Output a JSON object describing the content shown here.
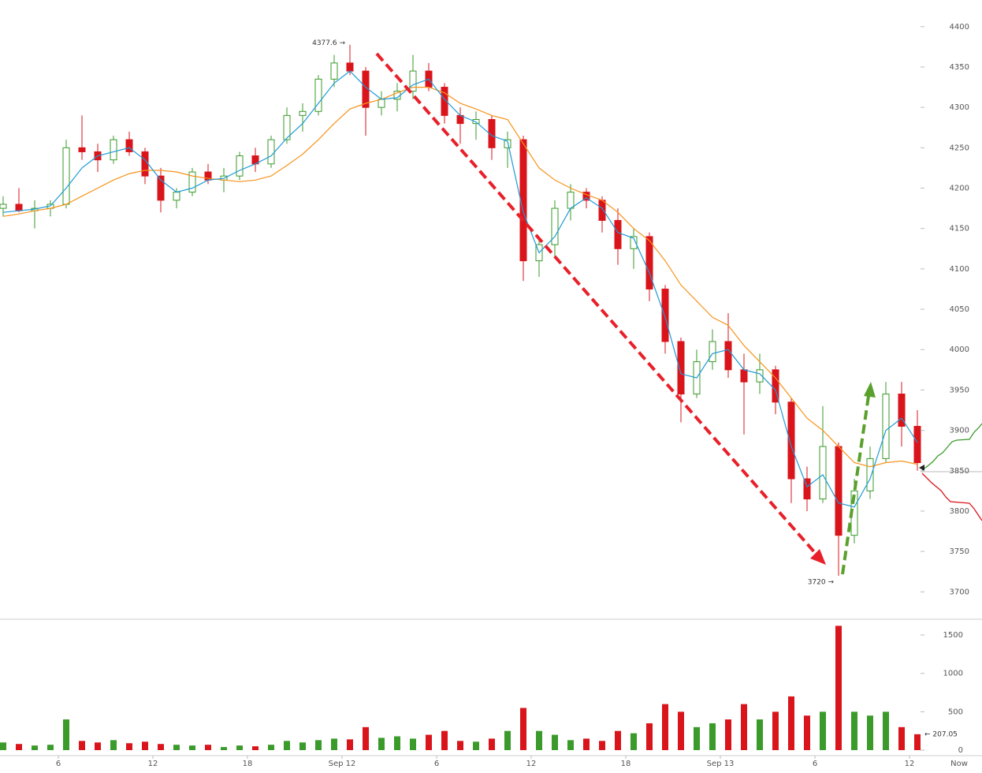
{
  "chart_data": {
    "type": "candlestick",
    "x": [
      2.5,
      3.5,
      4.5,
      5.5,
      6.5,
      7.5,
      8.5,
      9.5,
      10.5,
      11.5,
      12.5,
      13.5,
      14.5,
      15.5,
      16.5,
      17.5,
      18.5,
      19.5,
      20.5,
      21.5,
      22.5,
      23.5,
      24.5,
      25.5,
      26.5,
      27.5,
      28.5,
      29.5,
      30.5,
      31.5,
      32.5,
      33.5,
      34.5,
      35.5,
      36.5,
      37.5,
      38.5,
      39.5,
      40.5,
      41.5,
      42.5,
      43.5,
      44.5,
      45.5,
      46.5,
      47.5,
      48.5,
      49.5,
      50.5,
      51.5,
      52.5,
      53.5,
      54.5,
      55.5,
      56.5,
      57.5,
      58.5,
      59.5,
      60.5
    ],
    "open": [
      4175,
      4180,
      4172,
      4175,
      4180,
      4250,
      4245,
      4235,
      4260,
      4245,
      4215,
      4185,
      4195,
      4220,
      4210,
      4215,
      4240,
      4230,
      4260,
      4290,
      4295,
      4335,
      4355,
      4345,
      4300,
      4310,
      4320,
      4345,
      4325,
      4290,
      4280,
      4285,
      4250,
      4260,
      4110,
      4130,
      4175,
      4195,
      4185,
      4160,
      4125,
      4140,
      4075,
      4010,
      3945,
      3985,
      4010,
      3975,
      3960,
      3975,
      3935,
      3840,
      3815,
      3880,
      3770,
      3825,
      3865,
      3945,
      3905
    ],
    "high": [
      4190,
      4200,
      4185,
      4185,
      4260,
      4290,
      4255,
      4265,
      4270,
      4250,
      4225,
      4200,
      4225,
      4230,
      4225,
      4245,
      4250,
      4265,
      4300,
      4305,
      4340,
      4365,
      4377.6,
      4350,
      4320,
      4330,
      4365,
      4355,
      4330,
      4300,
      4295,
      4290,
      4270,
      4265,
      4140,
      4185,
      4205,
      4200,
      4190,
      4175,
      4150,
      4145,
      4080,
      4015,
      4000,
      4025,
      4045,
      3995,
      3995,
      3980,
      3940,
      3855,
      3930,
      3885,
      3840,
      3880,
      3960,
      3960,
      3925
    ],
    "low": [
      4165,
      4170,
      4150,
      4165,
      4175,
      4235,
      4220,
      4230,
      4240,
      4205,
      4170,
      4175,
      4190,
      4205,
      4195,
      4210,
      4220,
      4225,
      4255,
      4270,
      4290,
      4325,
      4340,
      4265,
      4290,
      4295,
      4310,
      4320,
      4280,
      4255,
      4260,
      4235,
      4225,
      4085,
      4090,
      4115,
      4160,
      4175,
      4145,
      4105,
      4100,
      4060,
      3995,
      3910,
      3940,
      3975,
      3965,
      3895,
      3945,
      3920,
      3810,
      3800,
      3810,
      3720,
      3760,
      3815,
      3860,
      3880,
      3850
    ],
    "close": [
      4180,
      4172,
      4175,
      4180,
      4250,
      4245,
      4235,
      4260,
      4245,
      4215,
      4185,
      4195,
      4220,
      4210,
      4215,
      4240,
      4230,
      4260,
      4290,
      4295,
      4335,
      4355,
      4345,
      4300,
      4310,
      4320,
      4345,
      4325,
      4290,
      4280,
      4285,
      4250,
      4260,
      4110,
      4130,
      4175,
      4195,
      4185,
      4160,
      4125,
      4140,
      4075,
      4010,
      3945,
      3985,
      4010,
      3975,
      3960,
      3975,
      3935,
      3840,
      3815,
      3880,
      3770,
      3825,
      3865,
      3945,
      3905,
      3860
    ],
    "volume": [
      100,
      80,
      60,
      70,
      400,
      120,
      100,
      130,
      90,
      110,
      80,
      70,
      60,
      70,
      40,
      60,
      50,
      70,
      120,
      100,
      130,
      150,
      140,
      300,
      160,
      180,
      150,
      200,
      250,
      120,
      110,
      150,
      250,
      550,
      250,
      200,
      130,
      150,
      120,
      250,
      220,
      350,
      600,
      500,
      300,
      350,
      400,
      600,
      400,
      500,
      700,
      450,
      500,
      1620,
      500,
      450,
      500,
      300,
      207.05
    ],
    "ma_fast": {
      "color": "#1f9ad6",
      "values": [
        4170,
        4172,
        4174,
        4178,
        4200,
        4225,
        4240,
        4245,
        4250,
        4235,
        4210,
        4195,
        4200,
        4210,
        4212,
        4222,
        4230,
        4240,
        4262,
        4280,
        4305,
        4330,
        4345,
        4325,
        4310,
        4312,
        4328,
        4335,
        4310,
        4290,
        4282,
        4265,
        4258,
        4170,
        4120,
        4140,
        4175,
        4188,
        4175,
        4145,
        4138,
        4095,
        4040,
        3970,
        3965,
        3995,
        4000,
        3975,
        3970,
        3950,
        3880,
        3830,
        3845,
        3810,
        3805,
        3840,
        3900,
        3915,
        3885
      ]
    },
    "ma_slow": {
      "color": "#f7931a",
      "values": [
        4165,
        4168,
        4172,
        4175,
        4180,
        4190,
        4200,
        4210,
        4218,
        4222,
        4222,
        4220,
        4215,
        4212,
        4210,
        4208,
        4210,
        4215,
        4228,
        4242,
        4260,
        4280,
        4298,
        4305,
        4310,
        4318,
        4325,
        4325,
        4318,
        4305,
        4298,
        4290,
        4285,
        4255,
        4225,
        4210,
        4200,
        4192,
        4185,
        4170,
        4150,
        4135,
        4110,
        4080,
        4060,
        4040,
        4030,
        4005,
        3985,
        3965,
        3940,
        3915,
        3900,
        3880,
        3860,
        3855,
        3860,
        3862,
        3858
      ]
    },
    "up_color": "#3a9a2a",
    "down_color": "#d9141b",
    "xlim": [
      2.3,
      60.8
    ],
    "xticks": [
      6,
      12,
      18,
      {
        "value": 24,
        "label": "Sep 12"
      },
      {
        "value": 30,
        "label": "6"
      },
      {
        "value": 36,
        "label": "12"
      },
      {
        "value": 42,
        "label": "18"
      },
      {
        "value": 48,
        "label": "Sep 13"
      },
      {
        "value": 54,
        "label": "6"
      },
      {
        "value": 60,
        "label": "12"
      }
    ],
    "now_label": "Now",
    "ylim": [
      3671,
      4433
    ],
    "yticks": [
      3700,
      3750,
      3800,
      3850,
      3900,
      3950,
      4000,
      4050,
      4100,
      4150,
      4200,
      4250,
      4300,
      4350,
      4400
    ],
    "volume_ylim": [
      0,
      1655
    ],
    "volume_yticks": [
      0,
      500,
      1000,
      1500
    ],
    "max_label": "4377.6 →",
    "min_label": "3720 →",
    "last_volume_label": "← 207.05"
  }
}
